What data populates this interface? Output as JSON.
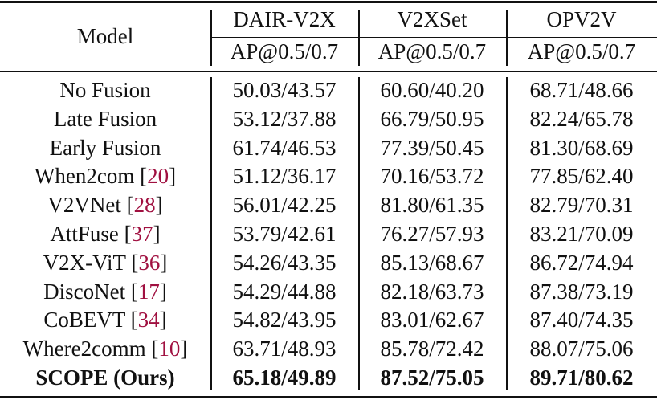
{
  "header": {
    "model_label": "Model",
    "datasets": [
      "DAIR-V2X",
      "V2XSet",
      "OPV2V"
    ],
    "metric": [
      "AP@0.5/0.7",
      "AP@0.5/0.7",
      "AP@0.5/0.7"
    ]
  },
  "rows": [
    {
      "model": "No Fusion",
      "cite": "",
      "values": [
        "50.03/43.57",
        "60.60/40.20",
        "68.71/48.66"
      ]
    },
    {
      "model": "Late Fusion",
      "cite": "",
      "values": [
        "53.12/37.88",
        "66.79/50.95",
        "82.24/65.78"
      ]
    },
    {
      "model": "Early Fusion",
      "cite": "",
      "values": [
        "61.74/46.53",
        "77.39/50.45",
        "81.30/68.69"
      ]
    },
    {
      "model": "When2com",
      "cite": "20",
      "values": [
        "51.12/36.17",
        "70.16/53.72",
        "77.85/62.40"
      ]
    },
    {
      "model": "V2VNet",
      "cite": "28",
      "values": [
        "56.01/42.25",
        "81.80/61.35",
        "82.79/70.31"
      ]
    },
    {
      "model": "AttFuse",
      "cite": "37",
      "values": [
        "53.79/42.61",
        "76.27/57.93",
        "83.21/70.09"
      ]
    },
    {
      "model": "V2X-ViT",
      "cite": "36",
      "values": [
        "54.26/43.35",
        "85.13/68.67",
        "86.72/74.94"
      ]
    },
    {
      "model": "DiscoNet",
      "cite": "17",
      "values": [
        "54.29/44.88",
        "82.18/63.73",
        "87.38/73.19"
      ]
    },
    {
      "model": "CoBEVT",
      "cite": "34",
      "values": [
        "54.82/43.95",
        "83.01/62.67",
        "87.40/74.35"
      ]
    },
    {
      "model": "Where2comm",
      "cite": "10",
      "values": [
        "63.71/48.93",
        "85.78/72.42",
        "88.07/75.06"
      ]
    },
    {
      "model": "SCOPE (Ours)",
      "cite": "",
      "values": [
        "65.18/49.89",
        "87.52/75.05",
        "89.71/80.62"
      ],
      "bold": true
    }
  ],
  "colors": {
    "citation": "#a01040",
    "text": "#111111",
    "rules": "#111111"
  },
  "chart_data": {
    "type": "table",
    "title": "",
    "columns": [
      "Model",
      "DAIR-V2X AP@0.5/0.7",
      "V2XSet AP@0.5/0.7",
      "OPV2V AP@0.5/0.7"
    ],
    "rows": [
      [
        "No Fusion",
        "50.03/43.57",
        "60.60/40.20",
        "68.71/48.66"
      ],
      [
        "Late Fusion",
        "53.12/37.88",
        "66.79/50.95",
        "82.24/65.78"
      ],
      [
        "Early Fusion",
        "61.74/46.53",
        "77.39/50.45",
        "81.30/68.69"
      ],
      [
        "When2com [20]",
        "51.12/36.17",
        "70.16/53.72",
        "77.85/62.40"
      ],
      [
        "V2VNet [28]",
        "56.01/42.25",
        "81.80/61.35",
        "82.79/70.31"
      ],
      [
        "AttFuse [37]",
        "53.79/42.61",
        "76.27/57.93",
        "83.21/70.09"
      ],
      [
        "V2X-ViT [36]",
        "54.26/43.35",
        "85.13/68.67",
        "86.72/74.94"
      ],
      [
        "DiscoNet [17]",
        "54.29/44.88",
        "82.18/63.73",
        "87.38/73.19"
      ],
      [
        "CoBEVT [34]",
        "54.82/43.95",
        "83.01/62.67",
        "87.40/74.35"
      ],
      [
        "Where2comm [10]",
        "63.71/48.93",
        "85.78/72.42",
        "88.07/75.06"
      ],
      [
        "SCOPE (Ours)",
        "65.18/49.89",
        "87.52/75.05",
        "89.71/80.62"
      ]
    ]
  }
}
